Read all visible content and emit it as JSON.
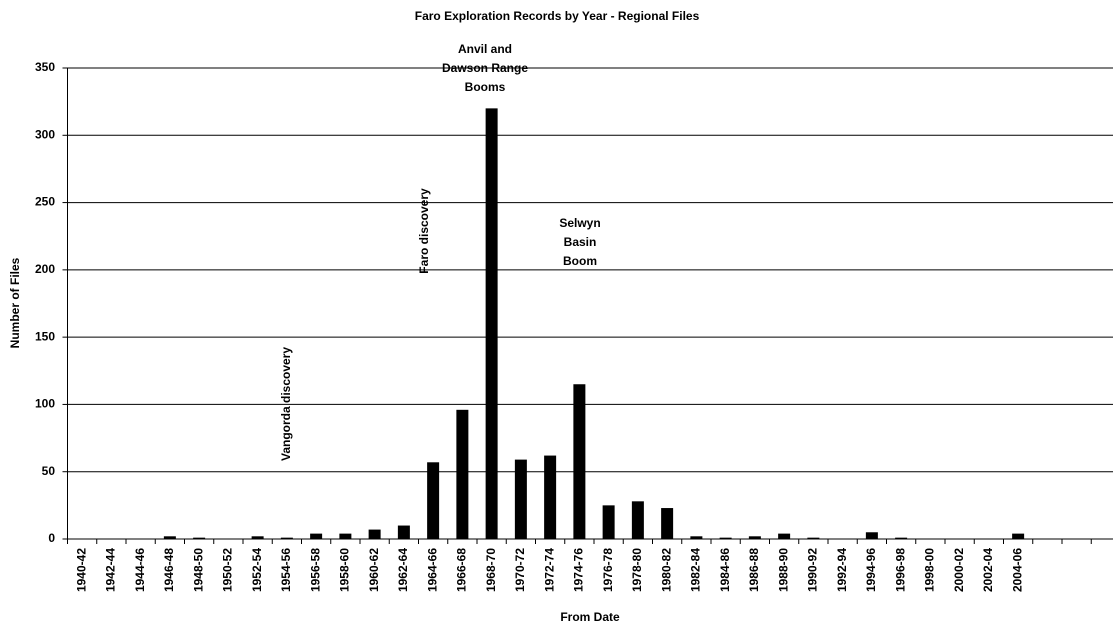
{
  "chart_data": {
    "type": "bar",
    "title": "Faro Exploration Records by Year - Regional Files",
    "x_label": "From Date",
    "y_label": "Number of Files",
    "categories": [
      "1940-42",
      "1942-44",
      "1944-46",
      "1946-48",
      "1948-50",
      "1950-52",
      "1952-54",
      "1954-56",
      "1956-58",
      "1958-60",
      "1960-62",
      "1962-64",
      "1964-66",
      "1966-68",
      "1968-70",
      "1970-72",
      "1972-74",
      "1974-76",
      "1976-78",
      "1978-80",
      "1980-82",
      "1982-84",
      "1984-86",
      "1986-88",
      "1988-90",
      "1990-92",
      "1992-94",
      "1994-96",
      "1996-98",
      "1998-00",
      "2000-02",
      "2002-04",
      "2004-06",
      null,
      null
    ],
    "values": [
      0,
      0,
      0,
      2,
      1,
      0,
      2,
      1,
      4,
      4,
      7,
      10,
      57,
      96,
      320,
      59,
      62,
      115,
      25,
      28,
      23,
      2,
      1,
      2,
      4,
      1,
      0,
      5,
      1,
      0,
      0,
      0,
      4,
      null,
      null
    ],
    "color": "#000000",
    "ylim": [
      0,
      350
    ],
    "yticks": [
      0,
      50,
      100,
      150,
      200,
      250,
      300,
      350
    ],
    "grid": true,
    "annotations": [
      {
        "lines": [
          "Anvil and",
          "Dawson Range",
          "Booms"
        ]
      },
      {
        "lines": [
          "Selwyn",
          "Basin",
          "Boom"
        ]
      },
      {
        "lines": [
          "Faro discovery"
        ]
      },
      {
        "lines": [
          "Vangorda discovery"
        ]
      }
    ]
  }
}
